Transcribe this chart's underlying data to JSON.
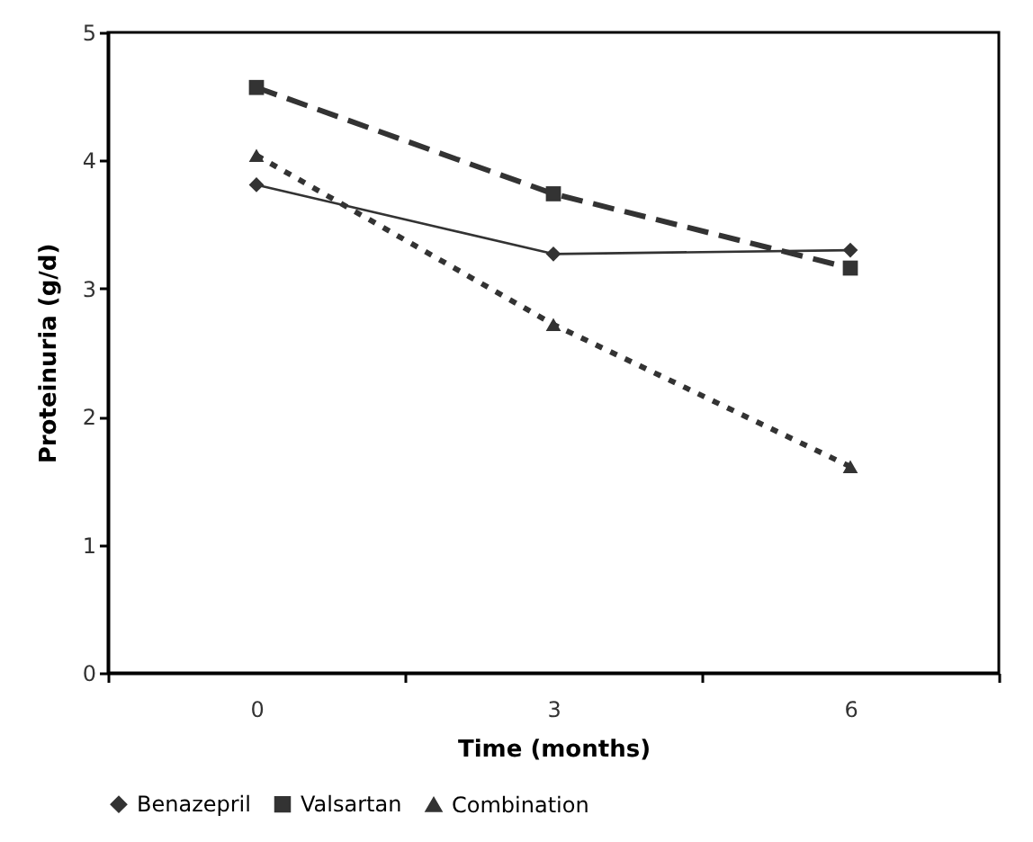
{
  "chart_data": {
    "type": "line",
    "xlabel": "Time (months)",
    "ylabel": "Proteinuria (g/d)",
    "categories": [
      "0",
      "3",
      "6"
    ],
    "series": [
      {
        "name": "Benazepril",
        "color": "#333333",
        "marker": "diamond",
        "line_style": "solid",
        "values": [
          3.81,
          3.27,
          3.3
        ]
      },
      {
        "name": "Valsartan",
        "color": "#333333",
        "marker": "square",
        "line_style": "dashed",
        "values": [
          4.57,
          3.74,
          3.16
        ]
      },
      {
        "name": "Combination",
        "color": "#333333",
        "marker": "triangle",
        "line_style": "dotted",
        "values": [
          4.04,
          2.72,
          1.61
        ]
      }
    ],
    "ylim": [
      0,
      5
    ],
    "yticks": [
      0,
      1,
      2,
      3,
      4,
      5
    ],
    "grid": false,
    "legend": "bottom"
  }
}
